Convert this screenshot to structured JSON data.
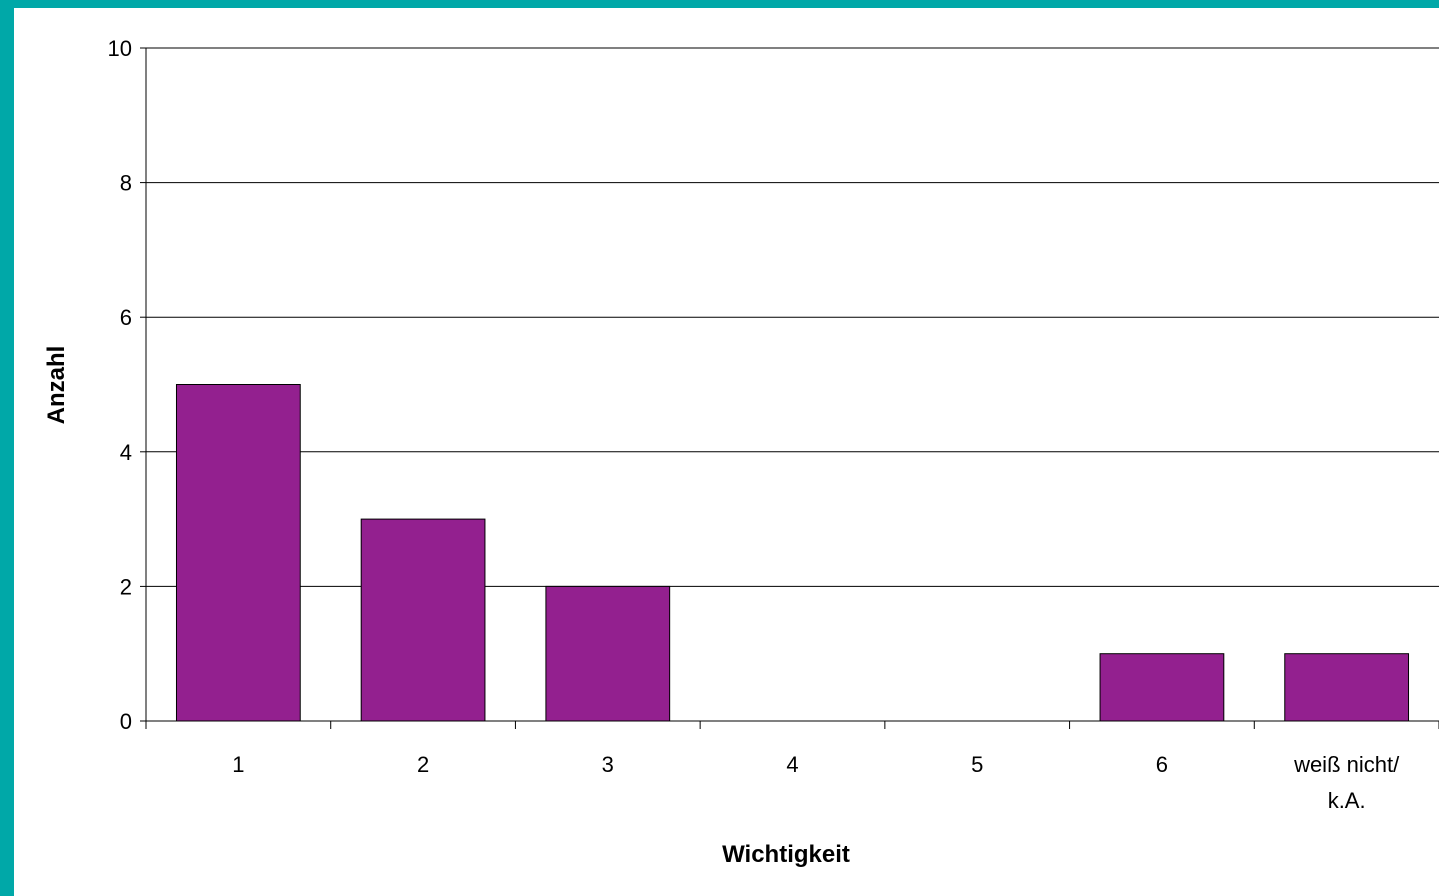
{
  "chart_data": {
    "type": "bar",
    "title": "",
    "xlabel": "Wichtigkeit",
    "ylabel": "Anzahl",
    "categories": [
      [
        "1"
      ],
      [
        "2"
      ],
      [
        "3"
      ],
      [
        "4"
      ],
      [
        "5"
      ],
      [
        "6"
      ],
      [
        "weiß nicht/",
        "k.A."
      ]
    ],
    "values": [
      5,
      3,
      2,
      0,
      0,
      1,
      1
    ],
    "ylim": [
      0,
      10
    ],
    "yticks": [
      0,
      2,
      4,
      6,
      8,
      10
    ],
    "grid": true,
    "legend": "none",
    "colors": {
      "bar": "#93208F",
      "frame": "#00A8A8",
      "grid": "#000000"
    }
  }
}
